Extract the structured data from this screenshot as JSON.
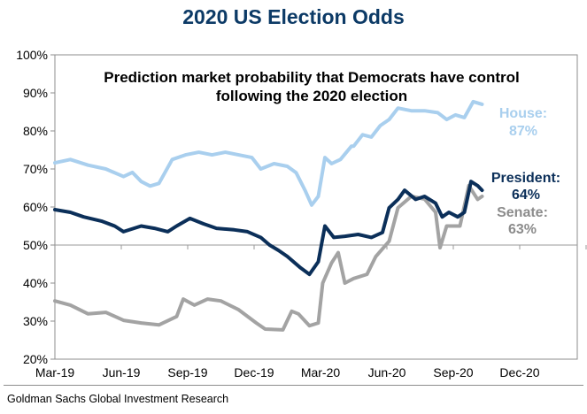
{
  "chart_data": {
    "type": "line",
    "title": "2020 US Election Odds",
    "subtitle": [
      "Prediction market probability that Democrats have control",
      "following the 2020 election"
    ],
    "xlabel": "",
    "ylabel": "",
    "x_unit": "months since Mar-19",
    "xlim": [
      0,
      24
    ],
    "ylim": [
      20,
      100
    ],
    "yticks": [
      20,
      30,
      40,
      50,
      60,
      70,
      80,
      90,
      100
    ],
    "ytick_labels": [
      "20%",
      "30%",
      "40%",
      "50%",
      "60%",
      "70%",
      "80%",
      "90%",
      "100%"
    ],
    "xticks": [
      0,
      3,
      6,
      9,
      12,
      15,
      18,
      21
    ],
    "xtick_labels": [
      "Mar-19",
      "Jun-19",
      "Sep-19",
      "Dec-19",
      "Mar-20",
      "Jun-20",
      "Sep-20",
      "Dec-20"
    ],
    "reference_line": 50,
    "grid": false,
    "legend": "annotations at right",
    "series": [
      {
        "name": "House",
        "color": "#a9cfee",
        "label": "House:",
        "last_value_label": "87%",
        "x": [
          0,
          0.7,
          1.5,
          2.3,
          3.1,
          3.5,
          3.9,
          4.3,
          4.7,
          5.3,
          5.9,
          6.5,
          7.1,
          7.7,
          8.3,
          8.9,
          9.3,
          9.9,
          10.5,
          10.9,
          11.3,
          11.6,
          11.9,
          12.2,
          12.5,
          12.9,
          13.4,
          13.5,
          13.9,
          14.3,
          14.7,
          15.1,
          15.5,
          16.1,
          16.7,
          17.3,
          17.7,
          18.1,
          18.5,
          18.9,
          19.3
        ],
        "values": [
          71.6,
          72.5,
          71.0,
          70.0,
          68.0,
          69.1,
          66.7,
          65.5,
          66.2,
          72.5,
          73.7,
          74.4,
          73.7,
          74.4,
          73.7,
          73.0,
          70.0,
          71.4,
          70.7,
          69.0,
          64.4,
          60.5,
          62.8,
          73.0,
          71.4,
          72.5,
          76.0,
          76.0,
          79.0,
          78.4,
          81.4,
          83.0,
          86.0,
          85.3,
          85.3,
          84.8,
          83.0,
          84.2,
          83.5,
          87.7,
          87.0
        ]
      },
      {
        "name": "President",
        "color": "#0b2f59",
        "label": "President:",
        "last_value_label": "64%",
        "x": [
          0,
          0.7,
          1.3,
          2.1,
          2.7,
          3.1,
          3.9,
          4.5,
          5.1,
          5.5,
          6.1,
          6.7,
          7.3,
          8.1,
          8.7,
          9.3,
          9.7,
          10.1,
          10.5,
          11.1,
          11.5,
          11.9,
          12.2,
          12.6,
          13.1,
          13.7,
          14.3,
          14.8,
          15.1,
          15.5,
          15.8,
          16.3,
          16.7,
          17.2,
          17.5,
          17.8,
          18.2,
          18.5,
          18.8,
          19.1,
          19.3
        ],
        "values": [
          59.3,
          58.6,
          57.4,
          56.3,
          55.0,
          53.5,
          55.0,
          54.4,
          53.5,
          55.0,
          57.0,
          55.6,
          54.4,
          54.0,
          53.5,
          52.0,
          50.0,
          48.6,
          47.0,
          44.0,
          42.3,
          45.6,
          55.0,
          52.0,
          52.3,
          52.8,
          52.0,
          53.3,
          59.8,
          62.0,
          64.4,
          62.0,
          62.8,
          61.0,
          57.4,
          58.6,
          57.4,
          58.6,
          66.7,
          65.6,
          64.4
        ]
      },
      {
        "name": "Senate",
        "color": "#a3a3a3",
        "label": "Senate:",
        "last_value_label": "63%",
        "x": [
          0,
          0.7,
          1.5,
          2.3,
          3.1,
          3.9,
          4.7,
          5.5,
          5.8,
          6.3,
          6.9,
          7.5,
          8.3,
          9.1,
          9.5,
          10.3,
          10.7,
          11.0,
          11.5,
          11.9,
          12.1,
          12.5,
          12.8,
          13.1,
          13.5,
          14.1,
          14.5,
          15.1,
          15.5,
          16.1,
          16.7,
          17.2,
          17.4,
          17.7,
          18.3,
          18.7,
          19.1,
          19.3
        ],
        "values": [
          35.3,
          34.2,
          31.9,
          32.3,
          30.2,
          29.5,
          29.0,
          31.2,
          35.8,
          34.2,
          35.8,
          35.3,
          33.0,
          29.5,
          27.9,
          27.7,
          32.6,
          31.9,
          28.8,
          29.5,
          40.0,
          45.3,
          48.0,
          40.0,
          41.2,
          42.3,
          47.0,
          51.0,
          59.8,
          62.8,
          62.1,
          58.6,
          49.3,
          55.0,
          55.0,
          65.6,
          62.0,
          62.8
        ]
      }
    ]
  },
  "source": "Goldman Sachs Global Investment Research"
}
